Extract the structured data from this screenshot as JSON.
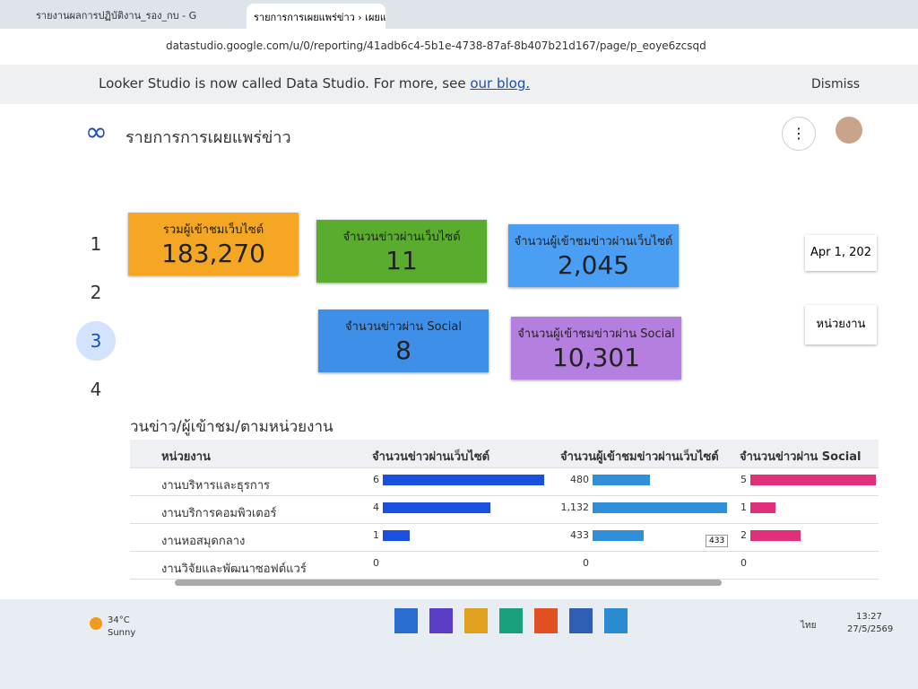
{
  "browser": {
    "tabs": [
      "รายงานผลการปฏิบัติงาน_รอง_กบ - G",
      "รายการการเผยแพร่ข่าว › เผยแพร่ข่า"
    ],
    "url": "datastudio.google.com/u/0/reporting/41adb6c4-5b1e-4738-87af-8b407b21d167/page/p_eoye6zcsqd"
  },
  "banner": {
    "text": "Looker Studio is now called Data Studio. For more, see ",
    "link": "our blog.",
    "dismiss": "Dismiss"
  },
  "report": {
    "title": "รายการการเผยแพร่ข่าว",
    "pages": [
      "1",
      "2",
      "3",
      "4"
    ],
    "date": "Apr 1, 202",
    "filter": "หน่วยงาน"
  },
  "scorecards": [
    {
      "label": "รวมผู้เข้าชมเว็บไซต์",
      "value": "183,270",
      "color": "#f5a623"
    },
    {
      "label": "จำนวนข่าวผ่านเว็บไซต์",
      "value": "11",
      "color": "#5aac2e"
    },
    {
      "label": "จำนวนผู้เข้าชมข่าวผ่านเว็บไซต์",
      "value": "2,045",
      "color": "#4a9ff5"
    },
    {
      "label": "จำนวนข่าวผ่าน Social",
      "value": "8",
      "color": "#3d8fe8"
    },
    {
      "label": "จำนวนผู้เข้าชมข่าวผ่าน Social",
      "value": "10,301",
      "color": "#b57fe0"
    }
  ],
  "table": {
    "title": "วนข่าว/ผู้เข้าชม/ตามหน่วยงาน",
    "headers": [
      "หน่วยงาน",
      "จำนวนข่าวผ่านเว็บไซต์",
      "จำนวนผู้เข้าชมข่าวผ่านเว็บไซต์",
      "จำนวนข่าวผ่าน Social"
    ],
    "colors": [
      "#1a4fe0",
      "#2f8fd8",
      "#e0307a"
    ],
    "rows": [
      [
        "งานบริหารและธุรการ",
        6,
        480,
        5
      ],
      [
        "งานบริการคอมพิวเตอร์",
        4,
        {
          "value": 1132,
          "label": "1,132"
        },
        1
      ],
      [
        "งานหอสมุดกลาง",
        1,
        433,
        2
      ],
      [
        "งานวิจัยและพัฒนาซอฟต์แวร์",
        0,
        0,
        0
      ]
    ],
    "tooltip": "433"
  },
  "taskbar": {
    "temp": "34°C",
    "weather": "Sunny",
    "lang": "ไทย",
    "time": "13:27",
    "date": "27/5/2569"
  }
}
